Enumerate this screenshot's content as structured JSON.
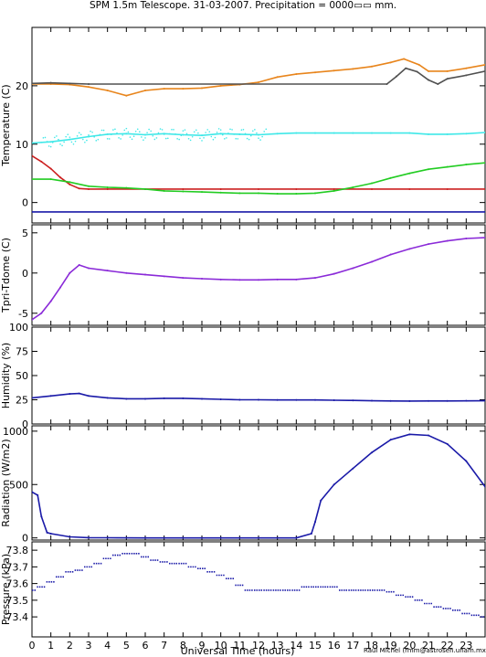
{
  "title": "SPM 1.5m Telescope. 31-03-2007. Precipitation = 0000▭▭ mm.",
  "footer_credit": "Raul Michel (rmm@astrosen.unam.mx)",
  "xaxis": {
    "label": "Universal Time (hours)",
    "range": [
      0,
      24
    ],
    "ticks": [
      "0",
      "1",
      "2",
      "3",
      "4",
      "5",
      "6",
      "7",
      "8",
      "9",
      "10",
      "11",
      "12",
      "13",
      "14",
      "15",
      "16",
      "17",
      "18",
      "19",
      "20",
      "21",
      "22",
      "23"
    ]
  },
  "chart_data": [
    {
      "type": "scatter",
      "id": "temperature",
      "ylabel": "Temperature (C)",
      "ylim": [
        -3.5,
        30
      ],
      "yticks": [
        0,
        10,
        20
      ],
      "ytick_labels": [
        "0",
        "10",
        "20"
      ],
      "series": [
        {
          "color": "#e8851c",
          "x": [
            0,
            1,
            2,
            3,
            4,
            5,
            6,
            7,
            8,
            9,
            10,
            11,
            12,
            13,
            14,
            15,
            16,
            17,
            18,
            19,
            19.7,
            20.5,
            21,
            22,
            23,
            24
          ],
          "y": [
            20.3,
            20.3,
            20.2,
            19.8,
            19.2,
            18.3,
            19.2,
            19.5,
            19.5,
            19.6,
            20.0,
            20.2,
            20.6,
            21.5,
            22,
            22.3,
            22.6,
            22.9,
            23.3,
            24.0,
            24.6,
            23.6,
            22.5,
            22.5,
            23.0,
            23.6
          ]
        },
        {
          "color": "#505050",
          "x": [
            0,
            1,
            2,
            3,
            18.8,
            19.3,
            19.8,
            20.4,
            21,
            21.5,
            22,
            23,
            24
          ],
          "y": [
            20.4,
            20.5,
            20.4,
            20.3,
            20.3,
            21.6,
            23.0,
            22.4,
            21.0,
            20.3,
            21.2,
            21.8,
            22.5
          ]
        },
        {
          "color": "#3fe8e8",
          "x": [
            0,
            1,
            2,
            3,
            4,
            5,
            6,
            7,
            8,
            9,
            10,
            11,
            12,
            13,
            14,
            15,
            16,
            17,
            18,
            19,
            20,
            21,
            22,
            23,
            24
          ],
          "y": [
            10.2,
            10.4,
            10.8,
            11.3,
            11.7,
            11.8,
            11.6,
            11.8,
            11.6,
            11.5,
            11.8,
            11.7,
            11.6,
            11.8,
            11.9,
            11.9,
            11.9,
            11.9,
            11.9,
            11.9,
            11.9,
            11.7,
            11.7,
            11.8,
            12.0
          ]
        },
        {
          "color": "#cc2020",
          "x": [
            0,
            0.5,
            1,
            1.5,
            2,
            2.5,
            3,
            4,
            6,
            8,
            10,
            12,
            14,
            16,
            18,
            20,
            22,
            24
          ],
          "y": [
            8.0,
            7.0,
            5.8,
            4.3,
            3.1,
            2.4,
            2.3,
            2.3,
            2.3,
            2.3,
            2.3,
            2.3,
            2.3,
            2.3,
            2.3,
            2.3,
            2.3,
            2.3
          ]
        },
        {
          "color": "#22cc22",
          "x": [
            0,
            1,
            2,
            3,
            4,
            5,
            6,
            7,
            8,
            9,
            10,
            11,
            12,
            13,
            14,
            15,
            16,
            17,
            18,
            19,
            20,
            21,
            22,
            23,
            24
          ],
          "y": [
            4.0,
            4.0,
            3.5,
            2.8,
            2.6,
            2.5,
            2.3,
            2.0,
            1.9,
            1.8,
            1.7,
            1.6,
            1.6,
            1.5,
            1.5,
            1.6,
            2.0,
            2.6,
            3.3,
            4.2,
            5.0,
            5.7,
            6.1,
            6.5,
            6.8
          ]
        },
        {
          "color": "#1a1aa8",
          "x": [
            0,
            24
          ],
          "y": [
            -1.6,
            -1.6
          ]
        }
      ]
    },
    {
      "type": "line",
      "id": "tpri-tdome",
      "ylabel": "Tpri-Tdome (C)",
      "ylim": [
        -6.5,
        6
      ],
      "yticks": [
        -5,
        0,
        5
      ],
      "ytick_labels": [
        "-5",
        "0",
        "5"
      ],
      "series": [
        {
          "color": "#8a2ad8",
          "x": [
            0,
            0.5,
            1,
            1.5,
            2,
            2.5,
            3,
            4,
            5,
            6,
            7,
            8,
            9,
            10,
            11,
            12,
            13,
            14,
            15,
            16,
            17,
            18,
            19,
            20,
            21,
            22,
            23,
            24
          ],
          "y": [
            -5.8,
            -5.0,
            -3.5,
            -1.8,
            0.0,
            1.0,
            0.6,
            0.3,
            0.0,
            -0.2,
            -0.4,
            -0.6,
            -0.7,
            -0.8,
            -0.85,
            -0.85,
            -0.8,
            -0.8,
            -0.6,
            -0.1,
            0.6,
            1.4,
            2.3,
            3.0,
            3.6,
            4.0,
            4.3,
            4.4
          ]
        }
      ]
    },
    {
      "type": "line",
      "id": "humidity",
      "ylabel": "Humidity (%)",
      "ylim": [
        0,
        100
      ],
      "yticks": [
        0,
        25,
        50,
        75,
        100
      ],
      "ytick_labels": [
        "0",
        "25",
        "50",
        "75",
        "100"
      ],
      "series": [
        {
          "color": "#1a1aa8",
          "x": [
            0,
            1,
            2,
            2.5,
            3,
            4,
            5,
            6,
            7,
            8,
            9,
            10,
            11,
            12,
            13,
            14,
            15,
            16,
            17,
            18,
            19,
            20,
            21,
            22,
            23,
            24
          ],
          "y": [
            27,
            29,
            31,
            31.5,
            29,
            27,
            26,
            26,
            26.5,
            26.5,
            26,
            25.5,
            25,
            25,
            24.8,
            24.8,
            24.8,
            24.5,
            24.3,
            24,
            23.8,
            23.7,
            23.8,
            23.8,
            23.9,
            24
          ]
        }
      ]
    },
    {
      "type": "line",
      "id": "radiation",
      "ylabel": "Radiation (W/m2)",
      "ylim": [
        -20,
        1050
      ],
      "yticks": [
        0,
        500,
        1000
      ],
      "ytick_labels": [
        "0",
        "500",
        "1000"
      ],
      "series": [
        {
          "color": "#1a1aa8",
          "x": [
            0,
            0.3,
            0.5,
            0.8,
            1,
            2,
            3,
            4,
            6,
            8,
            10,
            12,
            14,
            14.8,
            15.0,
            15.3,
            16,
            17,
            18,
            19,
            20,
            21,
            22,
            23,
            24
          ],
          "y": [
            430,
            400,
            200,
            50,
            40,
            10,
            2,
            1,
            0,
            0,
            0,
            0,
            0,
            40,
            150,
            350,
            500,
            650,
            800,
            920,
            970,
            960,
            880,
            720,
            480
          ]
        }
      ]
    },
    {
      "type": "scatter",
      "id": "pressure",
      "ylabel": "Pressure (kPa)",
      "ylim": [
        73.28,
        73.85
      ],
      "yticks": [
        73.4,
        73.5,
        73.6,
        73.7,
        73.8
      ],
      "ytick_labels": [
        "73.4",
        "73.5",
        "73.6",
        "73.7",
        "73.8"
      ],
      "series": [
        {
          "color": "#1a1aa8",
          "x": [
            0,
            0.5,
            1,
            1.5,
            2,
            2.5,
            3,
            3.5,
            4,
            4.5,
            5,
            5.5,
            6,
            6.5,
            7,
            7.5,
            8,
            8.5,
            9,
            9.5,
            10,
            10.5,
            11,
            11.5,
            12,
            12.5,
            13,
            13.5,
            14,
            14.5,
            15,
            15.5,
            16,
            16.5,
            17,
            17.5,
            18,
            18.5,
            19,
            19.5,
            20,
            20.5,
            21,
            21.5,
            22,
            22.5,
            23,
            23.5,
            24
          ],
          "y": [
            73.56,
            73.58,
            73.61,
            73.64,
            73.67,
            73.68,
            73.7,
            73.72,
            73.75,
            73.77,
            73.78,
            73.78,
            73.76,
            73.74,
            73.73,
            73.72,
            73.72,
            73.7,
            73.69,
            73.67,
            73.65,
            73.63,
            73.59,
            73.56,
            73.56,
            73.56,
            73.56,
            73.56,
            73.56,
            73.58,
            73.58,
            73.58,
            73.58,
            73.56,
            73.56,
            73.56,
            73.56,
            73.56,
            73.55,
            73.53,
            73.52,
            73.5,
            73.48,
            73.46,
            73.45,
            73.44,
            73.42,
            73.41,
            73.4
          ]
        }
      ]
    }
  ]
}
